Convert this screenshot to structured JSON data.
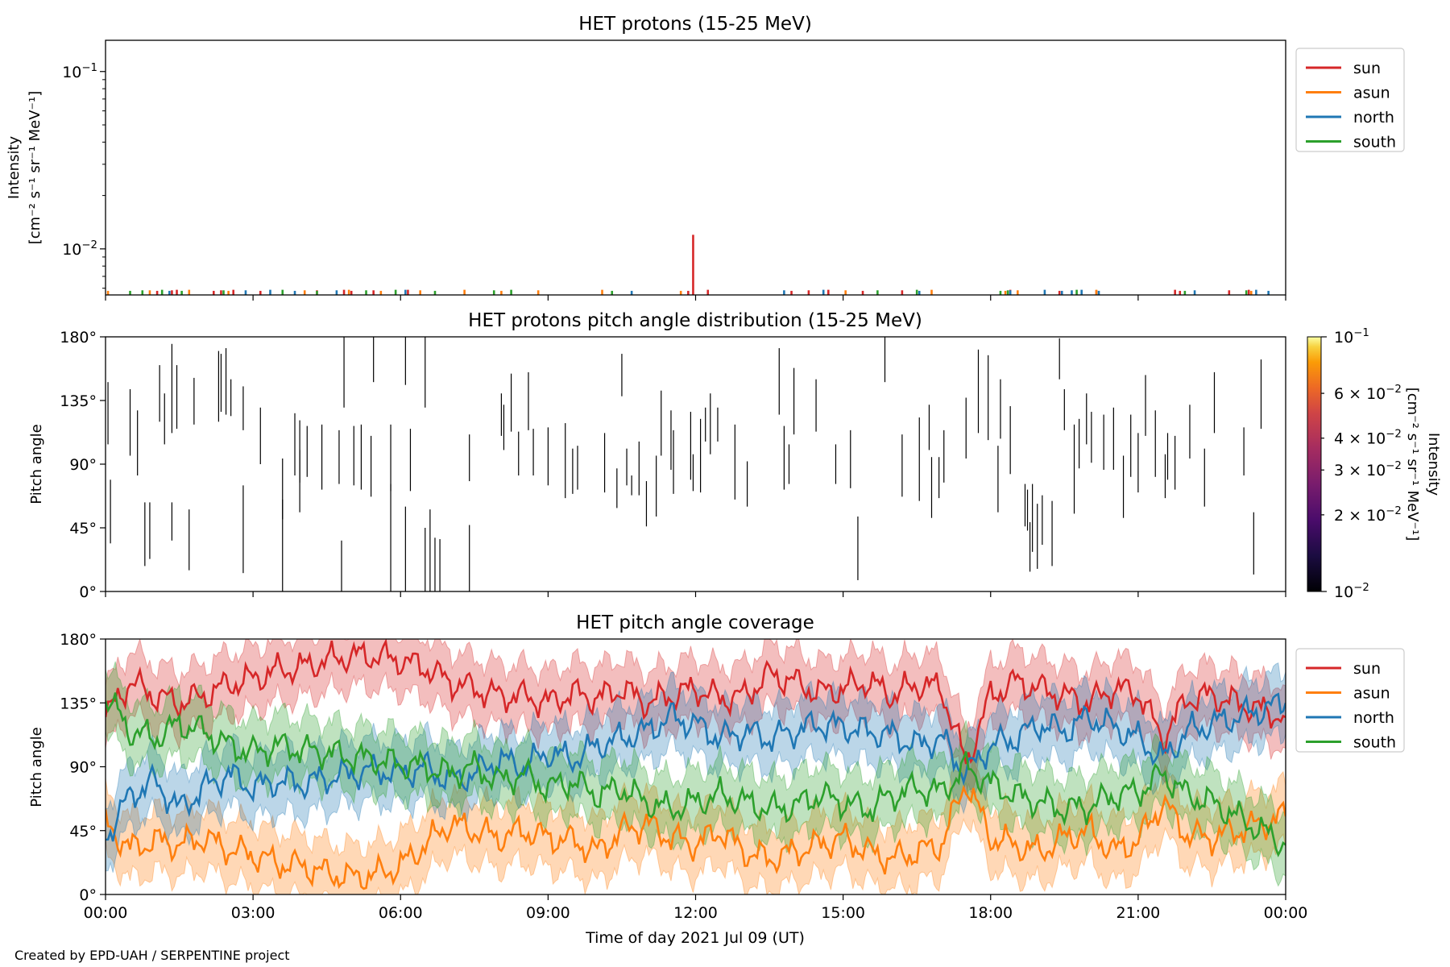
{
  "footer": {
    "credit": "Created by EPD-UAH / SERPENTINE project"
  },
  "chart_data": [
    {
      "id": "intensity",
      "type": "line",
      "title": "HET protons (15-25 MeV)",
      "ylabel_line1": "Intensity",
      "ylabel_line2": "[cm⁻² s⁻¹ sr⁻¹ MeV⁻¹]",
      "yscale": "log",
      "ylim": [
        0.0055,
        0.15
      ],
      "yticks": [
        {
          "value": 0.01,
          "base": "10",
          "exp": "−2"
        },
        {
          "value": 0.1,
          "base": "10",
          "exp": "−1"
        }
      ],
      "xlim_hours": [
        0,
        24
      ],
      "legend_position": "upper right outside",
      "series": [
        {
          "name": "sun",
          "color": "#d62728",
          "spike_hours": [
            1.05,
            1.35,
            1.45,
            2.2,
            2.35,
            2.6,
            3.15,
            4.3,
            4.85,
            5.0,
            5.45,
            6.15,
            11.85,
            11.95,
            12.25,
            13.95,
            14.3,
            14.7,
            15.4,
            16.2,
            18.4,
            19.4,
            20.15,
            21.75,
            21.85,
            22.85,
            23.25
          ],
          "spike_values": {
            "11.95": 0.012
          }
        },
        {
          "name": "asun",
          "color": "#ff7f0e",
          "spike_hours": [
            0.05,
            0.9,
            1.7,
            2.5,
            4.05,
            4.95,
            5.6,
            6.4,
            7.3,
            8.05,
            8.8,
            10.1,
            11.7,
            15.05,
            16.8,
            18.3,
            18.55,
            20.15,
            23.3
          ]
        },
        {
          "name": "north",
          "color": "#1f77b4",
          "spike_hours": [
            1.3,
            2.85,
            3.35,
            3.85,
            4.7,
            6.1,
            10.7,
            13.8,
            14.6,
            16.55,
            18.4,
            19.1,
            19.45,
            19.65,
            19.85,
            20.2,
            22.15,
            23.4,
            23.65
          ]
        },
        {
          "name": "south",
          "color": "#2ca02c",
          "spike_hours": [
            0.5,
            0.75,
            1.15,
            1.55,
            2.4,
            3.6,
            4.3,
            5.3,
            5.9,
            6.7,
            7.9,
            8.25,
            10.3,
            15.7,
            16.5,
            18.2,
            18.35,
            19.75,
            21.95,
            23.2
          ]
        }
      ]
    },
    {
      "id": "pad",
      "type": "scatter",
      "title": "HET protons pitch angle distribution (15-25 MeV)",
      "ylabel": "Pitch angle",
      "ylim": [
        0,
        180
      ],
      "yticks": [
        "0°",
        "45°",
        "90°",
        "135°",
        "180°"
      ],
      "xlim_hours": [
        0,
        24
      ],
      "colorbar": {
        "label_line1": "Intensity",
        "label_line2": "[cm⁻² s⁻¹ sr⁻¹ MeV⁻¹]",
        "scale": "log",
        "range": [
          0.01,
          0.1
        ],
        "colormap": "inferno",
        "ticks": [
          {
            "value": 0.1,
            "mant": "",
            "exp": "−1"
          },
          {
            "value": 0.06,
            "mant": "6",
            "exp": "−2"
          },
          {
            "value": 0.04,
            "mant": "4",
            "exp": "−2"
          },
          {
            "value": 0.03,
            "mant": "3",
            "exp": "−2"
          },
          {
            "value": 0.02,
            "mant": "2",
            "exp": "−2"
          },
          {
            "value": 0.01,
            "mant": "",
            "exp": "−2"
          }
        ]
      },
      "segments": [
        [
          0.05,
          148,
          104
        ],
        [
          0.1,
          79,
          34
        ],
        [
          0.5,
          143,
          96
        ],
        [
          0.65,
          128,
          82
        ],
        [
          0.8,
          63,
          18
        ],
        [
          0.9,
          63,
          23
        ],
        [
          1.1,
          160,
          120
        ],
        [
          1.2,
          140,
          104
        ],
        [
          1.35,
          175,
          112
        ],
        [
          1.35,
          63,
          36
        ],
        [
          1.45,
          160,
          115
        ],
        [
          1.7,
          58,
          15
        ],
        [
          1.8,
          151,
          118
        ],
        [
          2.3,
          170,
          120
        ],
        [
          2.35,
          168,
          127
        ],
        [
          2.45,
          172,
          125
        ],
        [
          2.55,
          150,
          124
        ],
        [
          2.8,
          145,
          114
        ],
        [
          2.8,
          75,
          13
        ],
        [
          3.15,
          130,
          90
        ],
        [
          3.6,
          94,
          51
        ],
        [
          3.6,
          65,
          0
        ],
        [
          3.85,
          126,
          82
        ],
        [
          3.95,
          100,
          56
        ],
        [
          3.95,
          121,
          77
        ],
        [
          4.1,
          117,
          81
        ],
        [
          4.4,
          118,
          72
        ],
        [
          4.75,
          114,
          76
        ],
        [
          4.8,
          36,
          0
        ],
        [
          4.85,
          180,
          130
        ],
        [
          5.05,
          117,
          75
        ],
        [
          5.2,
          118,
          72
        ],
        [
          5.4,
          110,
          67
        ],
        [
          5.45,
          180,
          148
        ],
        [
          5.8,
          76,
          0
        ],
        [
          5.8,
          118,
          71
        ],
        [
          6.1,
          180,
          146
        ],
        [
          6.1,
          60,
          0
        ],
        [
          6.2,
          115,
          71
        ],
        [
          6.5,
          180,
          130
        ],
        [
          6.5,
          45,
          0
        ],
        [
          6.6,
          58,
          0
        ],
        [
          6.7,
          38,
          0
        ],
        [
          6.8,
          37,
          0
        ],
        [
          7.4,
          111,
          78
        ],
        [
          7.4,
          47,
          0
        ],
        [
          8.05,
          140,
          110
        ],
        [
          8.1,
          132,
          100
        ],
        [
          8.25,
          154,
          113
        ],
        [
          8.4,
          113,
          82
        ],
        [
          8.6,
          155,
          114
        ],
        [
          8.7,
          115,
          82
        ],
        [
          9.0,
          116,
          75
        ],
        [
          9.35,
          119,
          66
        ],
        [
          9.5,
          101,
          69
        ],
        [
          9.6,
          103,
          72
        ],
        [
          10.15,
          112,
          70
        ],
        [
          10.5,
          168,
          138
        ],
        [
          10.4,
          87,
          59
        ],
        [
          10.6,
          101,
          75
        ],
        [
          10.7,
          82,
          68
        ],
        [
          10.85,
          106,
          68
        ],
        [
          11.0,
          78,
          46
        ],
        [
          11.2,
          96,
          53
        ],
        [
          11.3,
          142,
          96
        ],
        [
          11.5,
          128,
          86
        ],
        [
          11.55,
          114,
          69
        ],
        [
          11.9,
          127,
          79
        ],
        [
          11.95,
          97,
          71
        ],
        [
          12.1,
          122,
          70
        ],
        [
          12.2,
          130,
          106
        ],
        [
          12.3,
          140,
          97
        ],
        [
          12.45,
          130,
          106
        ],
        [
          12.8,
          118,
          65
        ],
        [
          13.05,
          92,
          60
        ],
        [
          13.7,
          172,
          125
        ],
        [
          13.8,
          117,
          72
        ],
        [
          13.9,
          104,
          76
        ],
        [
          14.0,
          158,
          111
        ],
        [
          14.45,
          150,
          113
        ],
        [
          14.85,
          104,
          76
        ],
        [
          15.15,
          114,
          73
        ],
        [
          15.3,
          53,
          8
        ],
        [
          15.85,
          180,
          148
        ],
        [
          16.2,
          111,
          67
        ],
        [
          16.55,
          123,
          64
        ],
        [
          16.75,
          132,
          100
        ],
        [
          16.8,
          95,
          52
        ],
        [
          16.95,
          95,
          66
        ],
        [
          17.05,
          114,
          77
        ],
        [
          17.5,
          137,
          94
        ],
        [
          17.75,
          171,
          112
        ],
        [
          17.95,
          167,
          107
        ],
        [
          18.15,
          103,
          56
        ],
        [
          18.2,
          150,
          108
        ],
        [
          18.4,
          131,
          83
        ],
        [
          18.7,
          76,
          46
        ],
        [
          18.75,
          72,
          43
        ],
        [
          18.8,
          49,
          14
        ],
        [
          18.85,
          76,
          28
        ],
        [
          18.95,
          62,
          16
        ],
        [
          19.05,
          68,
          33
        ],
        [
          19.25,
          64,
          18
        ],
        [
          19.4,
          179,
          150
        ],
        [
          19.5,
          143,
          114
        ],
        [
          19.7,
          118,
          55
        ],
        [
          19.8,
          122,
          87
        ],
        [
          19.95,
          140,
          104
        ],
        [
          20.05,
          127,
          91
        ],
        [
          20.3,
          125,
          86
        ],
        [
          20.5,
          130,
          86
        ],
        [
          20.7,
          96,
          52
        ],
        [
          20.85,
          125,
          81
        ],
        [
          21.0,
          112,
          70
        ],
        [
          21.15,
          153,
          110
        ],
        [
          21.35,
          128,
          81
        ],
        [
          21.55,
          97,
          66
        ],
        [
          21.6,
          112,
          79
        ],
        [
          21.75,
          110,
          72
        ],
        [
          22.05,
          132,
          94
        ],
        [
          22.35,
          101,
          60
        ],
        [
          22.55,
          155,
          112
        ],
        [
          23.15,
          116,
          82
        ],
        [
          23.35,
          56,
          12
        ],
        [
          23.5,
          164,
          115
        ]
      ]
    },
    {
      "id": "coverage",
      "type": "area",
      "title": "HET pitch angle coverage",
      "ylabel": "Pitch angle",
      "xlabel": "Time of day 2021 Jul 09 (UT)",
      "ylim": [
        0,
        180
      ],
      "yticks": [
        "0°",
        "45°",
        "90°",
        "135°",
        "180°"
      ],
      "xlim_hours": [
        0,
        24
      ],
      "xticks": [
        "00:00",
        "03:00",
        "06:00",
        "09:00",
        "12:00",
        "15:00",
        "18:00",
        "21:00",
        "00:00"
      ],
      "legend_position": "upper right outside",
      "band_halfwidth_deg": 22,
      "series": [
        {
          "name": "sun",
          "color": "#d62728",
          "x": [
            0,
            0.5,
            1,
            1.5,
            2,
            2.5,
            3,
            3.5,
            4,
            4.5,
            5,
            5.5,
            6,
            6.5,
            7,
            7.5,
            8,
            8.5,
            9,
            9.5,
            10,
            10.5,
            11,
            11.5,
            12,
            12.5,
            13,
            13.5,
            14,
            14.5,
            15,
            15.5,
            16,
            16.5,
            17,
            17.5,
            18,
            18.5,
            19,
            19.5,
            20,
            20.5,
            21,
            21.5,
            22,
            22.5,
            23,
            23.5,
            24
          ],
          "y": [
            125,
            150,
            140,
            135,
            140,
            148,
            152,
            158,
            160,
            165,
            168,
            168,
            165,
            160,
            150,
            145,
            140,
            140,
            135,
            142,
            138,
            145,
            135,
            140,
            145,
            138,
            140,
            155,
            150,
            142,
            145,
            150,
            140,
            148,
            145,
            92,
            140,
            150,
            145,
            140,
            135,
            145,
            142,
            110,
            138,
            140,
            135,
            130,
            125
          ]
        },
        {
          "name": "asun",
          "color": "#ff7f0e",
          "x": [
            0,
            0.5,
            1,
            1.5,
            2,
            2.5,
            3,
            3.5,
            4,
            4.5,
            5,
            5.5,
            6,
            6.5,
            7,
            7.5,
            8,
            8.5,
            9,
            9.5,
            10,
            10.5,
            11,
            11.5,
            12,
            12.5,
            13,
            13.5,
            14,
            14.5,
            15,
            15.5,
            16,
            16.5,
            17,
            17.5,
            18,
            18.5,
            19,
            19.5,
            20,
            20.5,
            21,
            21.5,
            22,
            22.5,
            23,
            23.5,
            24
          ],
          "y": [
            50,
            32,
            38,
            35,
            40,
            32,
            28,
            22,
            20,
            15,
            12,
            14,
            20,
            35,
            50,
            45,
            40,
            45,
            40,
            38,
            30,
            45,
            50,
            40,
            35,
            45,
            30,
            25,
            30,
            35,
            40,
            30,
            25,
            30,
            35,
            80,
            40,
            35,
            30,
            40,
            45,
            30,
            38,
            65,
            42,
            40,
            45,
            50,
            55
          ]
        },
        {
          "name": "north",
          "color": "#1f77b4",
          "x": [
            0,
            0.5,
            1,
            1.5,
            2,
            2.5,
            3,
            3.5,
            4,
            4.5,
            5,
            5.5,
            6,
            6.5,
            7,
            7.5,
            8,
            8.5,
            9,
            9.5,
            10,
            10.5,
            11,
            11.5,
            12,
            12.5,
            13,
            13.5,
            14,
            14.5,
            15,
            15.5,
            16,
            16.5,
            17,
            17.5,
            18,
            18.5,
            19,
            19.5,
            20,
            20.5,
            21,
            21.5,
            22,
            22.5,
            23,
            23.5,
            24
          ],
          "y": [
            40,
            70,
            80,
            60,
            75,
            85,
            75,
            80,
            78,
            82,
            85,
            88,
            85,
            90,
            80,
            85,
            95,
            90,
            100,
            95,
            105,
            110,
            115,
            125,
            120,
            110,
            115,
            110,
            115,
            120,
            118,
            115,
            112,
            105,
            110,
            85,
            105,
            110,
            120,
            115,
            125,
            118,
            110,
            95,
            115,
            120,
            125,
            130,
            135
          ]
        },
        {
          "name": "south",
          "color": "#2ca02c",
          "x": [
            0,
            0.5,
            1,
            1.5,
            2,
            2.5,
            3,
            3.5,
            4,
            4.5,
            5,
            5.5,
            6,
            6.5,
            7,
            7.5,
            8,
            8.5,
            9,
            9.5,
            10,
            10.5,
            11,
            11.5,
            12,
            12.5,
            13,
            13.5,
            14,
            14.5,
            15,
            15.5,
            16,
            16.5,
            17,
            17.5,
            18,
            18.5,
            19,
            19.5,
            20,
            20.5,
            21,
            21.5,
            22,
            22.5,
            23,
            23.5,
            24
          ],
          "y": [
            140,
            115,
            110,
            120,
            115,
            105,
            100,
            105,
            102,
            100,
            97,
            95,
            92,
            90,
            85,
            90,
            80,
            85,
            75,
            80,
            70,
            75,
            65,
            60,
            65,
            70,
            65,
            60,
            62,
            70,
            65,
            60,
            70,
            75,
            72,
            90,
            78,
            70,
            65,
            60,
            62,
            70,
            72,
            85,
            70,
            65,
            55,
            45,
            35
          ]
        }
      ]
    }
  ]
}
